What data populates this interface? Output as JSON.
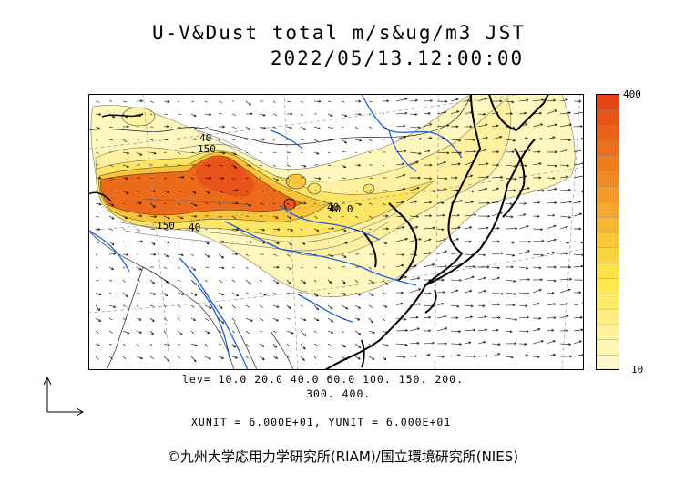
{
  "title_line1": "U-V&Dust total m/s&ug/m3 JST",
  "title_line2": "2022/05/13.12:00:00",
  "colorbar": {
    "max_label": "400",
    "min_label": "10",
    "min": 10,
    "max": 400,
    "colors": [
      "#fff8cc",
      "#fff5b3",
      "#fff29a",
      "#ffef80",
      "#ffec66",
      "#ffe94d",
      "#fde247",
      "#fbd540",
      "#f9c63a",
      "#f7b734",
      "#f5a82e",
      "#f39a29",
      "#f08b24",
      "#ee7d20",
      "#ec6f1c",
      "#ea6119",
      "#e85316",
      "#e64613"
    ]
  },
  "contour_labels": [
    "40",
    "150",
    "40",
    "40",
    "150",
    "40 0"
  ],
  "levels_line1": "lev= 10.0 20.0 40.0 60.0 100. 150. 200.",
  "levels_line2": "300. 400.",
  "units": "XUNIT = 6.000E+01, YUNIT = 6.000E+01",
  "credit": "©九州大学応用力学研究所(RIAM)/国立環境研究所(NIES)",
  "colors": {
    "dust_low": "#fff3a0",
    "dust_mid": "#f5b03a",
    "dust_high": "#e8531a",
    "rivers": "#1f5fe0",
    "coast": "#000000"
  }
}
